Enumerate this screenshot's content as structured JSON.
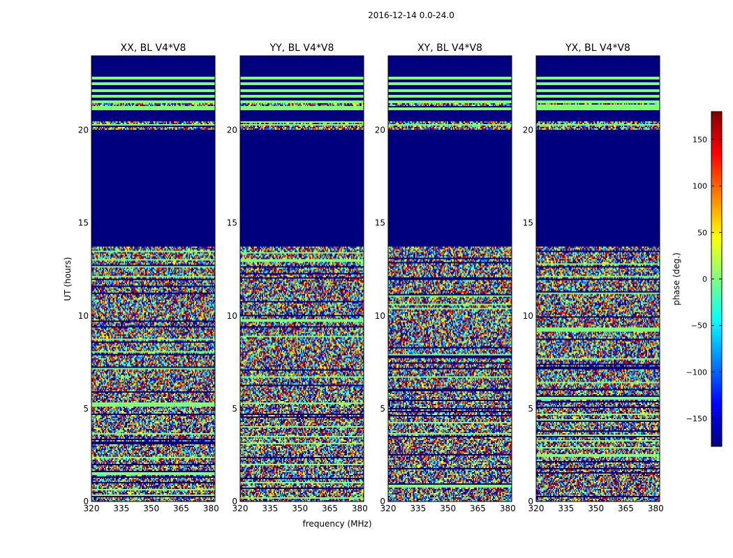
{
  "figure": {
    "suptitle": "2016-12-14 0.0-24.0"
  },
  "colors": {
    "low": "#00007f",
    "flag": "#80ff77",
    "colormap": [
      "#00007f",
      "#0000ff",
      "#0080ff",
      "#00ffff",
      "#80ff80",
      "#ffff00",
      "#ff8000",
      "#ff0000",
      "#7f0000"
    ]
  },
  "chart_data": {
    "type": "heatmap",
    "xlabel": "frequency (MHz)",
    "ylabel": "UT (hours)",
    "xlim": [
      320,
      382
    ],
    "ylim": [
      0,
      24
    ],
    "xticks": [
      320,
      335,
      350,
      365,
      380
    ],
    "yticks": [
      0,
      5,
      10,
      15,
      20
    ],
    "panels": [
      {
        "title": "XX, BL V4*V8",
        "pol": "XX"
      },
      {
        "title": "YY, BL V4*V8",
        "pol": "YY"
      },
      {
        "title": "XY, BL V4*V8",
        "pol": "XY"
      },
      {
        "title": "YX, BL V4*V8",
        "pol": "YX"
      }
    ],
    "flagged_uniform_hours": [
      [
        13.7,
        20.0
      ],
      [
        21.1,
        24.0
      ]
    ],
    "flag_lines_hours": [
      21.2,
      21.6,
      21.9,
      22.2,
      22.6,
      22.9
    ],
    "noise_hours": [
      [
        0,
        13.7
      ],
      [
        20.0,
        20.5
      ],
      [
        21.2,
        21.6
      ]
    ],
    "colorbar": {
      "label": "phase (deg.)",
      "min": -180,
      "max": 180,
      "ticks": [
        -150,
        -100,
        -50,
        0,
        50,
        100,
        150
      ],
      "tick_labels": [
        "−150",
        "−100",
        "−50",
        "0",
        "50",
        "100",
        "150"
      ]
    }
  }
}
